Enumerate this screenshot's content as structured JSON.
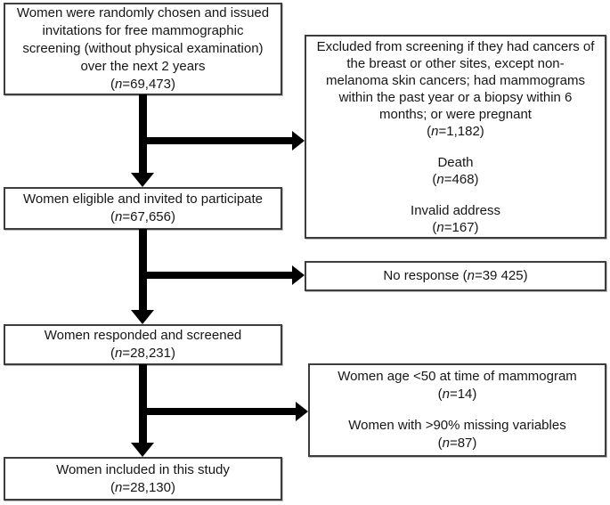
{
  "colors": {
    "background": "#ffffff",
    "box_border": "#3d3d3d",
    "arrow": "#000000",
    "text": "#161616"
  },
  "boxes": {
    "invited": {
      "lines": [
        "Women were randomly chosen and issued",
        "invitations for free mammographic",
        "screening (without physical examination)",
        "over the next 2 years"
      ],
      "n_pre": "(",
      "n_sym": "n",
      "n_post": "=69,473)"
    },
    "excluded": {
      "segments": [
        {
          "lines": [
            "Excluded from screening if they had cancers of",
            "the breast or other sites, except non-",
            "melanoma skin cancers; had mammograms",
            "within the past year or a biopsy within 6",
            "months; or were pregnant"
          ],
          "n_pre": "(",
          "n_sym": "n",
          "n_post": "=1,182)"
        },
        {
          "lines": [
            "Death"
          ],
          "n_pre": "(",
          "n_sym": "n",
          "n_post": "=468)"
        },
        {
          "lines": [
            "Invalid address"
          ],
          "n_pre": "(",
          "n_sym": "n",
          "n_post": "=167)"
        }
      ]
    },
    "eligible": {
      "lines": [
        "Women eligible and invited to participate"
      ],
      "n_pre": "(",
      "n_sym": "n",
      "n_post": "=67,656)"
    },
    "no_response": {
      "label": "No response ",
      "n_pre": "(",
      "n_sym": "n",
      "n_post": "=39 425)"
    },
    "responded": {
      "lines": [
        "Women responded and screened"
      ],
      "n_pre": "(",
      "n_sym": "n",
      "n_post": "=28,231)"
    },
    "age_missing": {
      "segments": [
        {
          "lines": [
            "Women age <50 at time of mammogram"
          ],
          "n_pre": "(",
          "n_sym": "n",
          "n_post": "=14)"
        },
        {
          "lines": [
            "Women with >90% missing variables"
          ],
          "n_pre": "(",
          "n_sym": "n",
          "n_post": "=87)"
        }
      ]
    },
    "included": {
      "lines": [
        "Women included in this study"
      ],
      "n_pre": "(",
      "n_sym": "n",
      "n_post": "=28,130)"
    }
  }
}
